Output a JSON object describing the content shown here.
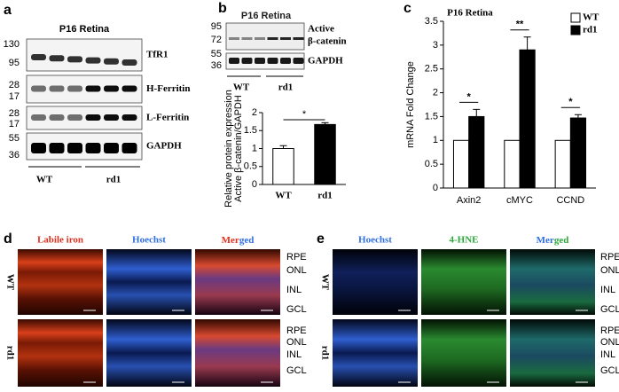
{
  "panels": {
    "a": {
      "label": "a",
      "title": "P16 Retina",
      "markers": [
        130,
        95,
        28,
        17,
        28,
        17,
        55,
        36
      ],
      "bands": [
        "TfR1",
        "H-Ferritin",
        "L-Ferritin",
        "GAPDH"
      ],
      "groups": [
        "WT",
        "rd1"
      ]
    },
    "b": {
      "label": "b",
      "title": "P16 Retina",
      "markers": [
        95,
        72,
        55,
        36
      ],
      "bands": [
        "Active",
        "β-catenin",
        "GAPDH"
      ],
      "groups": [
        "WT",
        "rd1"
      ]
    },
    "c": {
      "label": "c"
    },
    "d": {
      "label": "d",
      "columns": [
        "Labile iron",
        "Hoechst"
      ],
      "merged": [
        "Mer",
        "ged"
      ],
      "rows": [
        "WT",
        "rd1"
      ],
      "layers": [
        [
          "RPE",
          "ONL",
          "INL",
          "GCL"
        ],
        [
          "RPE",
          "ONL",
          "INL",
          "GCL"
        ]
      ]
    },
    "e": {
      "label": "e",
      "columns": [
        "Hoechst",
        "4-HNE"
      ],
      "merged": [
        "Mer",
        "ged"
      ],
      "rows": [
        "WT",
        "rd1"
      ],
      "layers": [
        [
          "RPE",
          "ONL",
          "INL",
          "GCL"
        ],
        [
          "RPE",
          "ONL",
          "INL",
          "GCL"
        ]
      ]
    }
  },
  "chart_data": [
    {
      "type": "bar",
      "ylabel": [
        "Relative protein expression",
        "Active β-catenin/GAPDH"
      ],
      "categories": [
        "WT",
        "rd1"
      ],
      "values": [
        1.0,
        1.67
      ],
      "errors": [
        0.08,
        0.05
      ],
      "colors": [
        "#ffffff",
        "#000000"
      ],
      "ylim": [
        0,
        2
      ],
      "yticks": [
        0,
        0.5,
        1,
        1.5,
        2
      ],
      "significance": [
        "*"
      ]
    },
    {
      "type": "bar",
      "title": "P16 Retina",
      "ylabel": "mRNA Fold Change",
      "categories": [
        "Axin2",
        "cMYC",
        "CCND"
      ],
      "series": [
        {
          "name": "WT",
          "color": "#ffffff",
          "values": [
            1,
            1,
            1
          ]
        },
        {
          "name": "rd1",
          "color": "#000000",
          "values": [
            1.5,
            2.9,
            1.47
          ],
          "errors": [
            0.15,
            0.27,
            0.07
          ]
        }
      ],
      "ylim": [
        0,
        3.5
      ],
      "yticks": [
        0,
        0.5,
        1,
        1.5,
        2,
        2.5,
        3,
        3.5
      ],
      "significance": [
        "*",
        "**",
        "*"
      ],
      "legend": "upper right"
    }
  ]
}
